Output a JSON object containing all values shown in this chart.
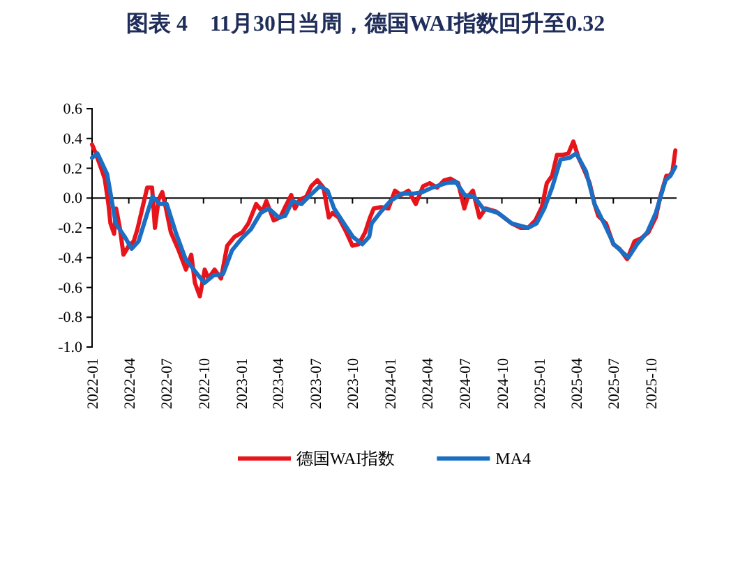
{
  "chart_data": {
    "type": "line",
    "title": "图表 4　11月30日当周，德国WAI指数回升至0.32",
    "xlim": [
      "2022-01-01",
      "2025-12-03"
    ],
    "xticks": [
      {
        "value": "2022-01-01",
        "label": "2022-01"
      },
      {
        "value": "2022-04-01",
        "label": "2022-04"
      },
      {
        "value": "2022-07-01",
        "label": "2022-07"
      },
      {
        "value": "2022-10-01",
        "label": "2022-10"
      },
      {
        "value": "2023-01-01",
        "label": "2023-01"
      },
      {
        "value": "2023-04-01",
        "label": "2023-04"
      },
      {
        "value": "2023-07-01",
        "label": "2023-07"
      },
      {
        "value": "2023-10-01",
        "label": "2023-10"
      },
      {
        "value": "2024-01-01",
        "label": "2024-01"
      },
      {
        "value": "2024-04-01",
        "label": "2024-04"
      },
      {
        "value": "2024-07-01",
        "label": "2024-07"
      },
      {
        "value": "2024-10-01",
        "label": "2024-10"
      },
      {
        "value": "2025-01-01",
        "label": "2025-01"
      },
      {
        "value": "2025-04-01",
        "label": "2025-04"
      },
      {
        "value": "2025-07-01",
        "label": "2025-07"
      },
      {
        "value": "2025-10-01",
        "label": "2025-10"
      }
    ],
    "ylim": [
      -1.0,
      0.6
    ],
    "yticks": [
      {
        "value": -1.0,
        "label": "-1.0"
      },
      {
        "value": -0.8,
        "label": "-0.8"
      },
      {
        "value": -0.6,
        "label": "-0.6"
      },
      {
        "value": -0.4,
        "label": "-0.4"
      },
      {
        "value": -0.2,
        "label": "-0.2"
      },
      {
        "value": 0,
        "label": "0.0"
      },
      {
        "value": 0.2,
        "label": "0.2"
      },
      {
        "value": 0.4,
        "label": "0.4"
      },
      {
        "value": 0.6,
        "label": "0.6"
      }
    ],
    "legend": "bottom",
    "series": [
      {
        "name": "德国WAI指数",
        "color": "#e8141c",
        "x": [
          "2022-01-01",
          "2022-01-10",
          "2022-01-22",
          "2022-02-01",
          "2022-02-10",
          "2022-02-15",
          "2022-02-24",
          "2022-03-01",
          "2022-03-10",
          "2022-03-19",
          "2022-04-01",
          "2022-04-13",
          "2022-04-22",
          "2022-05-04",
          "2022-05-16",
          "2022-05-28",
          "2022-06-04",
          "2022-06-13",
          "2022-06-22",
          "2022-07-01",
          "2022-07-13",
          "2022-08-01",
          "2022-08-19",
          "2022-09-01",
          "2022-09-10",
          "2022-09-22",
          "2022-10-04",
          "2022-10-13",
          "2022-10-28",
          "2022-11-13",
          "2022-11-28",
          "2022-12-16",
          "2023-01-04",
          "2023-01-19",
          "2023-02-07",
          "2023-02-22",
          "2023-03-04",
          "2023-03-22",
          "2023-04-07",
          "2023-04-19",
          "2023-05-04",
          "2023-05-13",
          "2023-05-25",
          "2023-06-10",
          "2023-06-22",
          "2023-07-07",
          "2023-07-22",
          "2023-08-04",
          "2023-08-13",
          "2023-08-28",
          "2023-09-16",
          "2023-10-01",
          "2023-10-16",
          "2023-11-01",
          "2023-11-13",
          "2023-11-22",
          "2023-12-10",
          "2023-12-28",
          "2024-01-13",
          "2024-01-28",
          "2024-02-15",
          "2024-03-04",
          "2024-03-22",
          "2024-04-07",
          "2024-04-25",
          "2024-05-13",
          "2024-05-28",
          "2024-06-16",
          "2024-07-01",
          "2024-07-10",
          "2024-07-22",
          "2024-08-07",
          "2024-08-22",
          "2024-09-16",
          "2024-10-01",
          "2024-10-25",
          "2024-11-16",
          "2024-12-04",
          "2024-12-22",
          "2025-01-07",
          "2025-01-19",
          "2025-02-01",
          "2025-02-13",
          "2025-02-28",
          "2025-03-13",
          "2025-03-25",
          "2025-04-07",
          "2025-04-22",
          "2025-05-04",
          "2025-05-16",
          "2025-05-25",
          "2025-06-13",
          "2025-07-01",
          "2025-07-16",
          "2025-08-04",
          "2025-08-22",
          "2025-09-07",
          "2025-09-25",
          "2025-10-13",
          "2025-10-25",
          "2025-11-08",
          "2025-11-16",
          "2025-11-23",
          "2025-11-30"
        ],
        "values": [
          0.36,
          0.3,
          0.21,
          0.13,
          -0.04,
          -0.17,
          -0.24,
          -0.07,
          -0.2,
          -0.38,
          -0.32,
          -0.29,
          -0.21,
          -0.07,
          0.07,
          0.07,
          -0.2,
          -0.01,
          0.04,
          -0.07,
          -0.23,
          -0.35,
          -0.48,
          -0.38,
          -0.57,
          -0.66,
          -0.48,
          -0.54,
          -0.48,
          -0.54,
          -0.32,
          -0.26,
          -0.23,
          -0.17,
          -0.04,
          -0.09,
          -0.02,
          -0.15,
          -0.13,
          -0.06,
          0.02,
          -0.07,
          -0.01,
          0.01,
          0.08,
          0.12,
          0.07,
          -0.13,
          -0.1,
          -0.13,
          -0.23,
          -0.32,
          -0.31,
          -0.23,
          -0.13,
          -0.07,
          -0.06,
          -0.07,
          0.05,
          0.02,
          0.05,
          -0.04,
          0.08,
          0.1,
          0.07,
          0.12,
          0.13,
          0.1,
          -0.07,
          0.01,
          0.05,
          -0.13,
          -0.07,
          -0.09,
          -0.12,
          -0.17,
          -0.2,
          -0.2,
          -0.15,
          -0.06,
          0.1,
          0.15,
          0.29,
          0.29,
          0.3,
          0.38,
          0.27,
          0.18,
          0.1,
          -0.04,
          -0.12,
          -0.17,
          -0.31,
          -0.34,
          -0.41,
          -0.29,
          -0.27,
          -0.23,
          -0.13,
          0.02,
          0.15,
          0.15,
          0.18,
          0.32
        ]
      },
      {
        "name": "MA4",
        "color": "#1a6fc4",
        "x": [
          "2022-01-01",
          "2022-01-14",
          "2022-02-07",
          "2022-02-28",
          "2022-03-22",
          "2022-04-08",
          "2022-04-25",
          "2022-05-13",
          "2022-05-29",
          "2022-06-16",
          "2022-07-03",
          "2022-07-25",
          "2022-08-18",
          "2022-09-10",
          "2022-10-03",
          "2022-10-25",
          "2022-11-18",
          "2022-12-10",
          "2023-01-03",
          "2023-01-25",
          "2023-02-18",
          "2023-03-10",
          "2023-04-03",
          "2023-04-19",
          "2023-05-07",
          "2023-05-29",
          "2023-06-16",
          "2023-07-13",
          "2023-08-01",
          "2023-08-17",
          "2023-09-10",
          "2023-10-02",
          "2023-10-25",
          "2023-11-11",
          "2023-11-17",
          "2023-12-10",
          "2024-01-02",
          "2024-01-30",
          "2024-02-27",
          "2024-03-20",
          "2024-04-13",
          "2024-05-17",
          "2024-06-10",
          "2024-07-02",
          "2024-07-25",
          "2024-08-16",
          "2024-09-22",
          "2024-10-25",
          "2024-12-04",
          "2024-12-25",
          "2025-01-13",
          "2025-02-01",
          "2025-02-22",
          "2025-03-16",
          "2025-04-01",
          "2025-04-25",
          "2025-05-16",
          "2025-06-10",
          "2025-07-02",
          "2025-08-07",
          "2025-08-28",
          "2025-09-22",
          "2025-10-13",
          "2025-11-06",
          "2025-11-18",
          "2025-11-30"
        ],
        "values": [
          0.27,
          0.3,
          0.16,
          -0.17,
          -0.26,
          -0.34,
          -0.29,
          -0.13,
          0.01,
          -0.04,
          -0.04,
          -0.23,
          -0.41,
          -0.49,
          -0.57,
          -0.52,
          -0.51,
          -0.35,
          -0.27,
          -0.21,
          -0.1,
          -0.07,
          -0.13,
          -0.12,
          -0.02,
          -0.04,
          0.01,
          0.08,
          0.05,
          -0.07,
          -0.17,
          -0.26,
          -0.31,
          -0.26,
          -0.17,
          -0.09,
          -0.02,
          0.03,
          0.03,
          0.04,
          0.07,
          0.1,
          0.11,
          0.02,
          0.01,
          -0.07,
          -0.1,
          -0.17,
          -0.2,
          -0.17,
          -0.07,
          0.07,
          0.26,
          0.27,
          0.3,
          0.18,
          -0.04,
          -0.18,
          -0.31,
          -0.4,
          -0.31,
          -0.23,
          -0.1,
          0.12,
          0.15,
          0.21
        ]
      }
    ]
  }
}
